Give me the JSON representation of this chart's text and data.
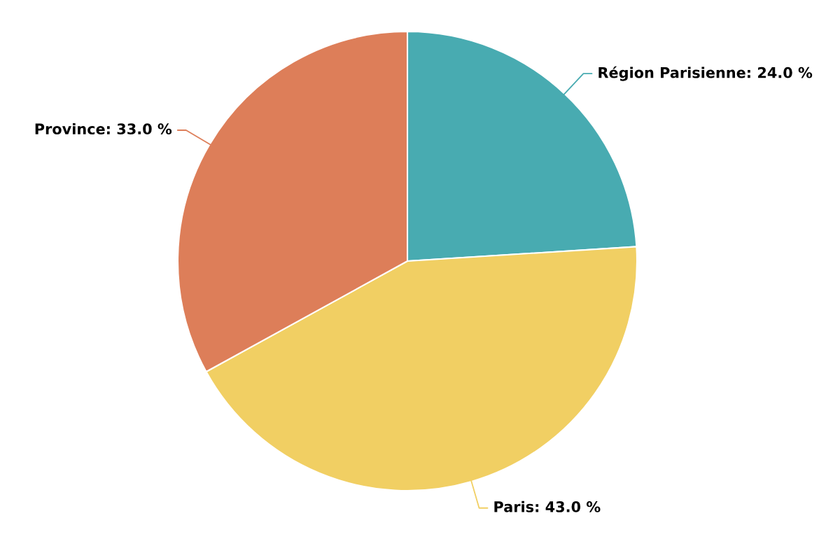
{
  "chart_data": {
    "type": "pie",
    "categories": [
      "Région Parisienne",
      "Paris",
      "Province"
    ],
    "values": [
      24.0,
      43.0,
      33.0
    ],
    "value_labels": [
      "24.0 %",
      "43.0 %",
      "33.0 %"
    ],
    "colors": [
      "#48abb1",
      "#f1cf63",
      "#dd7e59"
    ]
  }
}
